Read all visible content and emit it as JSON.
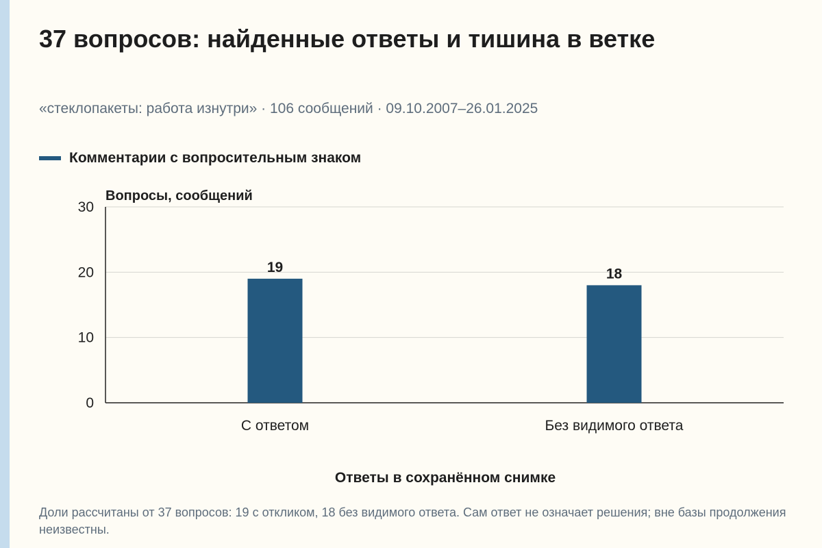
{
  "title": "37 вопросов: найденные ответы и тишина в ветке",
  "subtitle": "«стеклопакеты: работа изнутри» · 106 сообщений · 09.10.2007–26.01.2025",
  "legend": {
    "label": "Комментарии с вопросительным знаком"
  },
  "footnote": "Доли рассчитаны от 37 вопросов: 19 с откликом, 18 без видимого ответа. Сам ответ не означает решения; вне базы продолжения неизвестны.",
  "colors": {
    "bar": "#24597f",
    "grid": "#d6d6d0",
    "axis": "#222222",
    "accent_stripe": "#c5dced"
  },
  "chart_data": {
    "type": "bar",
    "categories": [
      "С ответом",
      "Без видимого ответа"
    ],
    "series": [
      {
        "name": "Комментарии с вопросительным знаком",
        "values": [
          19,
          18
        ]
      }
    ],
    "data_labels": [
      "19",
      "18"
    ],
    "xlabel": "Ответы в сохранённом снимке",
    "ylabel": "Вопросы, сообщений",
    "ylim": [
      0,
      30
    ],
    "yticks": [
      0,
      10,
      20,
      30
    ],
    "grid": true,
    "legend_position": "top-left"
  }
}
